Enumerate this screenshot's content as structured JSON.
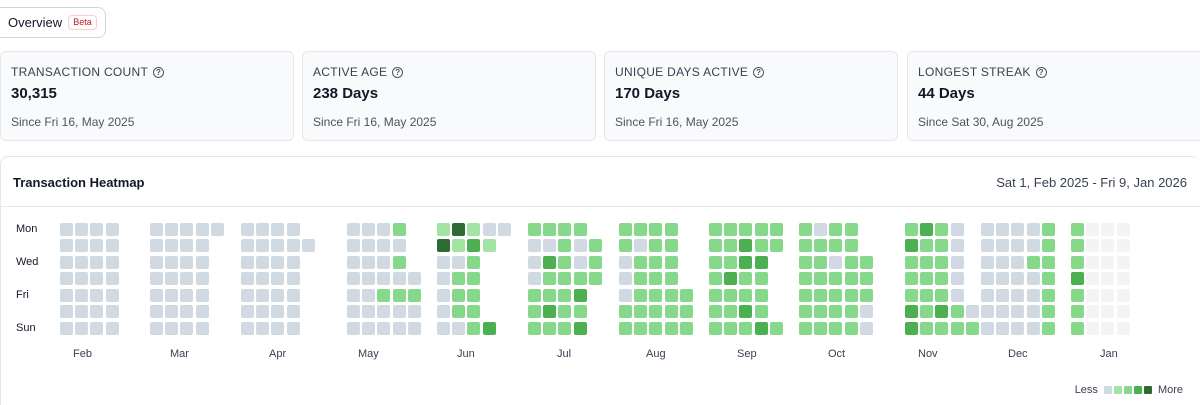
{
  "tab": {
    "label": "Overview",
    "badge": "Beta"
  },
  "stats": [
    {
      "label": "TRANSACTION COUNT",
      "value": "30,315",
      "sub": "Since Fri 16, May 2025"
    },
    {
      "label": "ACTIVE AGE",
      "value": "238 Days",
      "sub": "Since Fri 16, May 2025"
    },
    {
      "label": "UNIQUE DAYS ACTIVE",
      "value": "170 Days",
      "sub": "Since Fri 16, May 2025"
    },
    {
      "label": "LONGEST STREAK",
      "value": "44 Days",
      "sub": "Since Sat 30, Aug 2025"
    }
  ],
  "heatmap": {
    "title": "Transaction Heatmap",
    "range": "Sat 1, Feb 2025 - Fri 9, Jan 2026",
    "day_labels": [
      "Mon",
      "Wed",
      "Fri",
      "Sun"
    ],
    "months": [
      "Feb",
      "Mar",
      "Apr",
      "May",
      "Jun",
      "Jul",
      "Aug",
      "Sep",
      "Oct",
      "Nov",
      "Dec",
      "Jan"
    ],
    "legend": {
      "less": "Less",
      "more": "More"
    },
    "colors": [
      "#f3f4f6",
      "#d1d9e2",
      "#a3e4a5",
      "#86d98a",
      "#4caf50",
      "#2e6b34"
    ],
    "months_grid": [
      {
        "start_row": 5,
        "levels": [
          [
            1,
            1,
            1,
            1
          ],
          [
            1,
            1,
            1,
            1
          ],
          [
            1,
            1,
            1,
            1
          ],
          [
            1,
            1,
            1,
            1
          ],
          [
            1,
            1,
            1,
            1
          ],
          [
            1,
            1,
            1,
            1
          ],
          [
            1,
            1,
            1,
            1
          ]
        ]
      },
      {
        "start_row": 5,
        "levels": [
          [
            1,
            1,
            1,
            1,
            1
          ],
          [
            1,
            1,
            1,
            1
          ],
          [
            1,
            1,
            1,
            1
          ],
          [
            1,
            1,
            1,
            1
          ],
          [
            1,
            1,
            1,
            1
          ],
          [
            1,
            1,
            1,
            1
          ],
          [
            1,
            1,
            1,
            1
          ]
        ]
      },
      {
        "start_row": 5,
        "levels": [
          [
            1,
            1,
            1,
            1
          ],
          [
            1,
            1,
            1,
            1,
            1
          ],
          [
            1,
            1,
            1,
            1
          ],
          [
            1,
            1,
            1,
            1
          ],
          [
            1,
            1,
            1,
            1
          ],
          [
            1,
            1,
            1,
            1
          ],
          [
            1,
            1,
            1,
            1
          ]
        ]
      },
      {
        "start_row": 3,
        "levels": [
          [
            1,
            1,
            1,
            3
          ],
          [
            1,
            1,
            1,
            1
          ],
          [
            1,
            1,
            1,
            3
          ],
          [
            1,
            1,
            1,
            1,
            1
          ],
          [
            1,
            1,
            3,
            3,
            3
          ],
          [
            1,
            1,
            1,
            1,
            1
          ],
          [
            1,
            1,
            1,
            1,
            1
          ]
        ]
      },
      {
        "start_row": 0,
        "levels": [
          [
            2,
            5,
            2,
            1,
            1
          ],
          [
            5,
            2,
            4,
            2
          ],
          [
            1,
            1,
            3
          ],
          [
            1,
            3,
            3
          ],
          [
            1,
            3,
            3
          ],
          [
            1,
            3,
            3
          ],
          [
            1,
            1,
            3,
            4
          ]
        ]
      },
      {
        "start_row": 0,
        "levels": [
          [
            3,
            3,
            3,
            3
          ],
          [
            1,
            1,
            3,
            1,
            3
          ],
          [
            1,
            4,
            3,
            1,
            3
          ],
          [
            1,
            3,
            3,
            3,
            3
          ],
          [
            3,
            3,
            3,
            4
          ],
          [
            3,
            4,
            3,
            3
          ],
          [
            3,
            3,
            3,
            4
          ]
        ]
      },
      {
        "start_row": 0,
        "levels": [
          [
            3,
            3,
            3,
            3
          ],
          [
            3,
            1,
            3,
            3
          ],
          [
            1,
            3,
            3,
            3
          ],
          [
            1,
            3,
            3,
            3
          ],
          [
            1,
            3,
            3,
            3,
            3
          ],
          [
            3,
            3,
            3,
            3,
            3
          ],
          [
            3,
            3,
            3,
            3,
            3
          ]
        ]
      },
      {
        "start_row": 0,
        "levels": [
          [
            3,
            3,
            3,
            3,
            3
          ],
          [
            3,
            3,
            4,
            3,
            3
          ],
          [
            3,
            3,
            4,
            4
          ],
          [
            3,
            4,
            3,
            3
          ],
          [
            3,
            3,
            3,
            3
          ],
          [
            3,
            3,
            4,
            3
          ],
          [
            3,
            3,
            3,
            4,
            3
          ]
        ]
      },
      {
        "start_row": 0,
        "levels": [
          [
            3,
            1,
            3,
            3
          ],
          [
            3,
            3,
            3,
            3
          ],
          [
            3,
            3,
            1,
            3,
            3
          ],
          [
            3,
            3,
            3,
            3,
            3
          ],
          [
            3,
            3,
            3,
            3,
            3
          ],
          [
            3,
            3,
            3,
            3,
            1
          ],
          [
            3,
            3,
            3,
            3,
            1
          ]
        ]
      },
      {
        "start_row": 0,
        "levels": [
          [
            3,
            4,
            3,
            1
          ],
          [
            4,
            3,
            3,
            1
          ],
          [
            3,
            3,
            3,
            1
          ],
          [
            3,
            3,
            3,
            1
          ],
          [
            3,
            3,
            3,
            1
          ],
          [
            4,
            3,
            4,
            3,
            1
          ],
          [
            4,
            3,
            3,
            3,
            3
          ]
        ]
      },
      {
        "start_row": 0,
        "levels": [
          [
            1,
            1,
            1,
            1,
            3
          ],
          [
            1,
            1,
            1,
            1,
            3
          ],
          [
            1,
            1,
            1,
            3,
            3
          ],
          [
            1,
            1,
            1,
            1,
            3
          ],
          [
            1,
            1,
            1,
            1,
            3
          ],
          [
            1,
            1,
            1,
            1,
            3
          ],
          [
            1,
            1,
            1,
            1,
            3
          ]
        ]
      },
      {
        "start_row": 0,
        "levels": [
          [
            3,
            0,
            0,
            0
          ],
          [
            3,
            0,
            0,
            0
          ],
          [
            3,
            0,
            0,
            0
          ],
          [
            4,
            0,
            0,
            0
          ],
          [
            3,
            0,
            0,
            0
          ],
          [
            3,
            0,
            0,
            0
          ],
          [
            3,
            0,
            0,
            0
          ]
        ]
      }
    ]
  }
}
